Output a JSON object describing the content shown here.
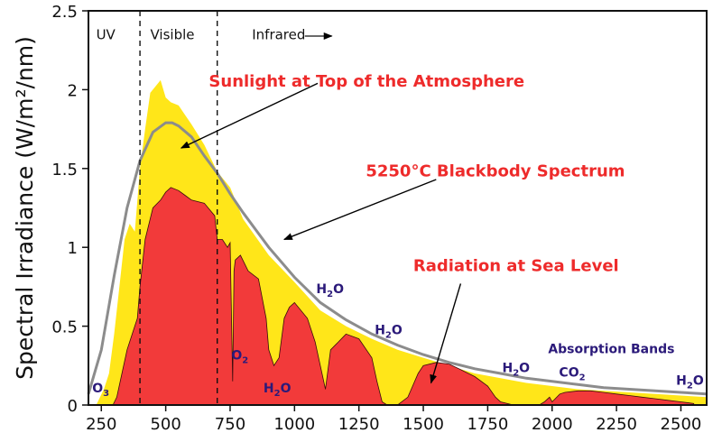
{
  "chart_data": {
    "type": "area",
    "xlabel": "",
    "ylabel": "Spectral Irradiance (W/m²/nm)",
    "xlim": [
      200,
      2600
    ],
    "ylim": [
      0,
      2.5
    ],
    "x_ticks": [
      250,
      500,
      750,
      1000,
      1250,
      1500,
      1750,
      2000,
      2250,
      2500
    ],
    "y_ticks": [
      0,
      0.5,
      1,
      1.5,
      2,
      2.5
    ],
    "y_tick_labels": [
      "0",
      "0.5",
      "1",
      "1.5",
      "2",
      "2.5"
    ],
    "regions": [
      {
        "label": "UV",
        "x": 230
      },
      {
        "label": "Visible",
        "x": 440
      },
      {
        "label": "Infrared",
        "x": 835
      }
    ],
    "region_boundaries": [
      400,
      700
    ],
    "infrared_arrow": "→",
    "series": [
      {
        "name": "Sunlight at Top of the Atmosphere",
        "color": "#ffe619",
        "x": [
          230,
          260,
          280,
          300,
          320,
          340,
          360,
          380,
          400,
          420,
          440,
          460,
          480,
          500,
          520,
          550,
          575,
          600,
          650,
          700,
          750,
          800,
          900,
          1000,
          1100,
          1200,
          1300,
          1400,
          1500,
          1600,
          1700,
          1800,
          1900,
          2000,
          2100,
          2200,
          2300,
          2400,
          2500,
          2600
        ],
        "values": [
          0.0,
          0.1,
          0.2,
          0.45,
          0.75,
          1.05,
          1.15,
          1.1,
          1.5,
          1.75,
          1.98,
          2.02,
          2.06,
          1.95,
          1.92,
          1.9,
          1.84,
          1.78,
          1.65,
          1.48,
          1.38,
          1.18,
          0.95,
          0.78,
          0.6,
          0.5,
          0.42,
          0.35,
          0.3,
          0.25,
          0.2,
          0.17,
          0.14,
          0.12,
          0.1,
          0.09,
          0.08,
          0.07,
          0.06,
          0.05
        ]
      },
      {
        "name": "5250°C Blackbody Spectrum",
        "color": "#8c8c8c",
        "x": [
          200,
          250,
          300,
          350,
          400,
          450,
          500,
          525,
          550,
          600,
          650,
          700,
          750,
          800,
          900,
          1000,
          1100,
          1200,
          1300,
          1400,
          1500,
          1600,
          1700,
          1800,
          1900,
          2000,
          2100,
          2200,
          2300,
          2400,
          2500,
          2600
        ],
        "values": [
          0.07,
          0.35,
          0.82,
          1.25,
          1.55,
          1.73,
          1.79,
          1.79,
          1.77,
          1.7,
          1.58,
          1.47,
          1.34,
          1.22,
          1.0,
          0.81,
          0.65,
          0.54,
          0.45,
          0.38,
          0.32,
          0.27,
          0.23,
          0.2,
          0.17,
          0.15,
          0.13,
          0.11,
          0.1,
          0.09,
          0.08,
          0.07
        ]
      },
      {
        "name": "Radiation at Sea Level",
        "color": "#f23a3a",
        "x": [
          295,
          310,
          330,
          350,
          370,
          390,
          400,
          420,
          450,
          480,
          500,
          520,
          550,
          575,
          600,
          650,
          690,
          700,
          720,
          740,
          750,
          760,
          765,
          770,
          790,
          820,
          860,
          890,
          900,
          920,
          940,
          960,
          980,
          1000,
          1050,
          1080,
          1100,
          1120,
          1140,
          1170,
          1200,
          1250,
          1300,
          1320,
          1340,
          1360,
          1400,
          1440,
          1480,
          1500,
          1550,
          1600,
          1650,
          1700,
          1750,
          1780,
          1800,
          1850,
          1900,
          1950,
          1970,
          1990,
          2000,
          2030,
          2050,
          2100,
          2150,
          2200,
          2250,
          2300,
          2350,
          2400,
          2450,
          2500,
          2550
        ],
        "values": [
          0.0,
          0.05,
          0.2,
          0.35,
          0.45,
          0.55,
          0.75,
          1.05,
          1.25,
          1.3,
          1.35,
          1.38,
          1.36,
          1.33,
          1.3,
          1.28,
          1.2,
          1.05,
          1.05,
          1.0,
          1.03,
          0.15,
          0.85,
          0.92,
          0.95,
          0.85,
          0.8,
          0.55,
          0.35,
          0.25,
          0.3,
          0.55,
          0.62,
          0.65,
          0.55,
          0.4,
          0.25,
          0.1,
          0.35,
          0.4,
          0.45,
          0.42,
          0.3,
          0.15,
          0.02,
          0.0,
          0.0,
          0.05,
          0.2,
          0.25,
          0.27,
          0.26,
          0.22,
          0.18,
          0.12,
          0.05,
          0.02,
          0.0,
          0.0,
          0.0,
          0.02,
          0.05,
          0.02,
          0.07,
          0.08,
          0.09,
          0.09,
          0.08,
          0.07,
          0.06,
          0.05,
          0.04,
          0.03,
          0.02,
          0.01
        ]
      }
    ],
    "annotations": [
      {
        "id": "top-atm",
        "text": "Sunlight at Top of the Atmosphere",
        "tx": 1280,
        "ty": 2.02,
        "ax": 1090,
        "ay": 2.04,
        "hx": 560,
        "hy": 1.63
      },
      {
        "id": "blackbody",
        "text": "5250°C Blackbody Spectrum",
        "tx": 1780,
        "ty": 1.45,
        "ax": 1550,
        "ay": 1.43,
        "hx": 960,
        "hy": 1.05
      },
      {
        "id": "sea-level",
        "text": "Radiation at Sea Level",
        "tx": 1860,
        "ty": 0.85,
        "ax": 1645,
        "ay": 0.77,
        "hx": 1530,
        "hy": 0.14
      }
    ],
    "absorption_labels": [
      {
        "base": "O",
        "sub": "3",
        "x": 248,
        "y": 0.08
      },
      {
        "base": "O",
        "sub": "2",
        "x": 788,
        "y": 0.29
      },
      {
        "base": "H",
        "sub": "2",
        "tail": "O",
        "x": 1138,
        "y": 0.71
      },
      {
        "base": "H",
        "sub": "2",
        "tail": "O",
        "x": 1365,
        "y": 0.45
      },
      {
        "base": "H",
        "sub": "2",
        "tail": "O",
        "x": 933,
        "y": 0.08
      },
      {
        "base": "H",
        "sub": "2",
        "tail": "O",
        "x": 1860,
        "y": 0.21
      },
      {
        "base": "CO",
        "sub": "2",
        "x": 2078,
        "y": 0.18
      },
      {
        "base": "H",
        "sub": "2",
        "tail": "O",
        "x": 2535,
        "y": 0.13
      },
      {
        "base": "Absorption Bands",
        "x": 2230,
        "y": 0.33
      }
    ]
  }
}
